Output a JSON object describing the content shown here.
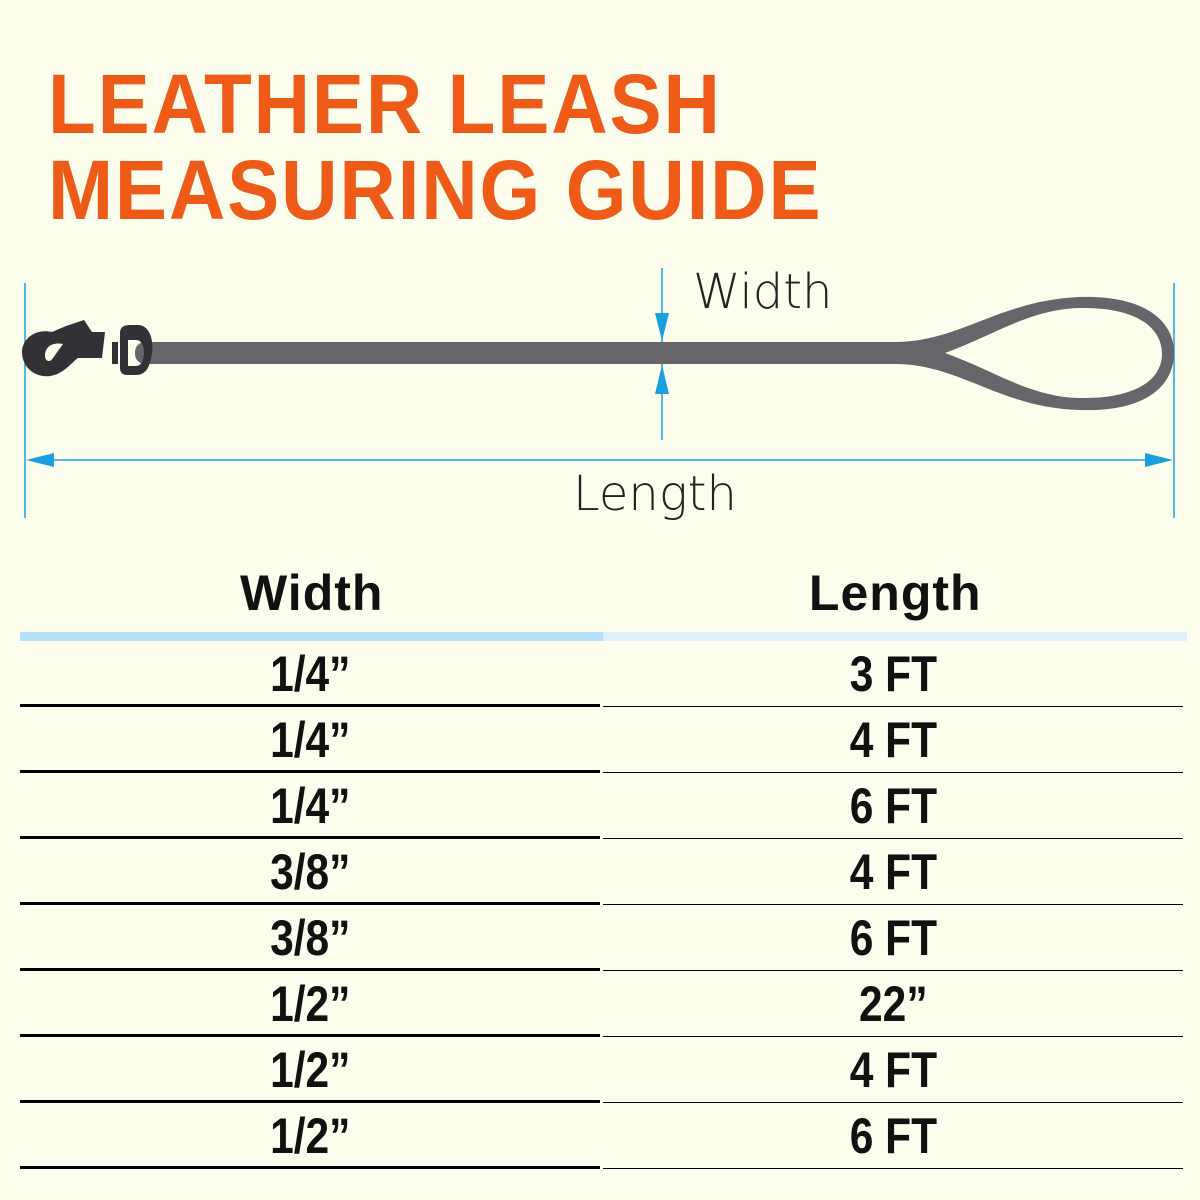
{
  "title": {
    "line1": "LEATHER LEASH",
    "line2": "MEASURING GUIDE"
  },
  "diagram": {
    "width_label": "Width",
    "length_label": "Length"
  },
  "table": {
    "headers": [
      "Width",
      "Length"
    ],
    "rows": [
      [
        "1/4”",
        "3 FT"
      ],
      [
        "1/4”",
        "4 FT"
      ],
      [
        "1/4”",
        "6 FT"
      ],
      [
        "3/8”",
        "4 FT"
      ],
      [
        "3/8”",
        "6 FT"
      ],
      [
        "1/2”",
        "22”"
      ],
      [
        "1/2”",
        "4 FT"
      ],
      [
        "1/2”",
        "6 FT"
      ]
    ]
  },
  "colors": {
    "title": "#ee5b18",
    "dimension": "#1aa0e0",
    "leash": "#676569",
    "clip": "#333136"
  }
}
